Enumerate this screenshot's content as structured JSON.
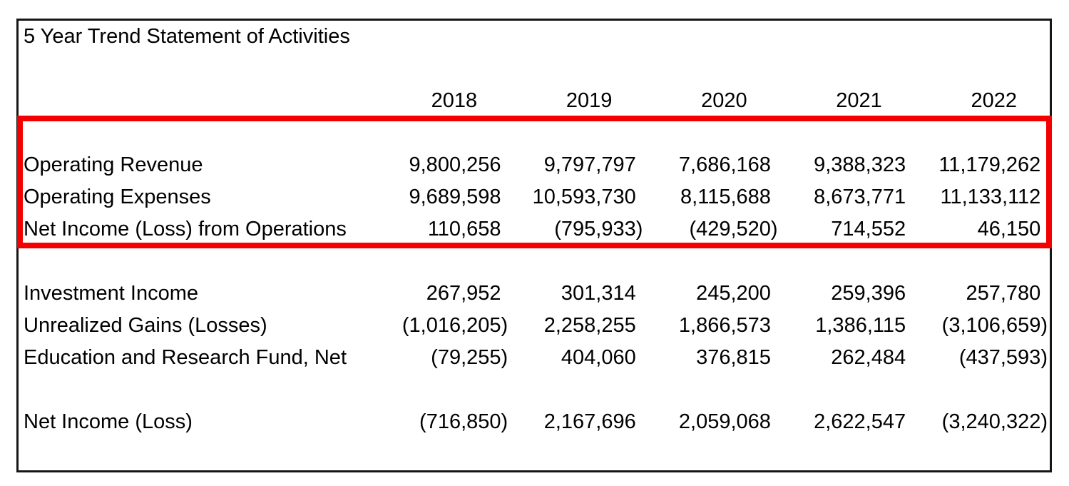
{
  "title": "5 Year Trend Statement of Activities",
  "years": [
    "2018",
    "2019",
    "2020",
    "2021",
    "2022"
  ],
  "rows": [
    {
      "label": "Operating Revenue",
      "values": [
        "9,800,256",
        "9,797,797",
        "7,686,168",
        "9,388,323",
        "11,179,262"
      ]
    },
    {
      "label": "Operating Expenses",
      "values": [
        "9,689,598",
        "10,593,730",
        "8,115,688",
        "8,673,771",
        "11,133,112"
      ]
    },
    {
      "label": "Net Income (Loss) from Operations",
      "values": [
        "110,658",
        "(795,933)",
        "(429,520)",
        "714,552",
        "46,150"
      ]
    },
    {
      "label": "Investment Income",
      "values": [
        "267,952",
        "301,314",
        "245,200",
        "259,396",
        "257,780"
      ]
    },
    {
      "label": "Unrealized Gains (Losses)",
      "values": [
        "(1,016,205)",
        "2,258,255",
        "1,866,573",
        "1,386,115",
        "(3,106,659)"
      ]
    },
    {
      "label": "Education and Research Fund, Net",
      "values": [
        "(79,255)",
        "404,060",
        "376,815",
        "262,484",
        "(437,593)"
      ]
    },
    {
      "label": "Net Income (Loss)",
      "values": [
        "(716,850)",
        "2,167,696",
        "2,059,068",
        "2,622,547",
        "(3,240,322)"
      ]
    }
  ],
  "colors": {
    "highlight_border": "#f40000",
    "table_border": "#161616",
    "text": "#000000",
    "background": "#ffffff"
  }
}
